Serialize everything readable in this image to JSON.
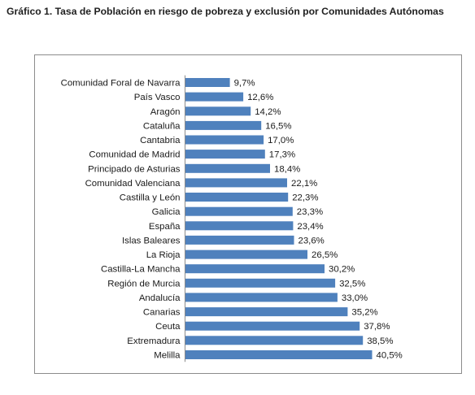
{
  "page": {
    "title": "Gráfico  1. Tasa de Población en riesgo de pobreza y exclusión por Comunidades Autónomas"
  },
  "chart_data": {
    "type": "bar",
    "orientation": "horizontal",
    "title": "",
    "xlabel": "",
    "ylabel": "",
    "xlim": [
      0,
      45
    ],
    "grid": false,
    "legend": "none",
    "bar_color": "#4f81bd",
    "categories": [
      "Comunidad Foral de Navarra",
      "País Vasco",
      "Aragón",
      "Cataluña",
      "Cantabria",
      "Comunidad de Madrid",
      "Principado de Asturias",
      "Comunidad Valenciana",
      "Castilla y León",
      "Galicia",
      "España",
      "Islas Baleares",
      "La Rioja",
      "Castilla-La Mancha",
      "Región de Murcia",
      "Andalucía",
      "Canarias",
      "Ceuta",
      "Extremadura",
      "Melilla"
    ],
    "values": [
      9.7,
      12.6,
      14.2,
      16.5,
      17.0,
      17.3,
      18.4,
      22.1,
      22.3,
      23.3,
      23.4,
      23.6,
      26.5,
      30.2,
      32.5,
      33.0,
      35.2,
      37.8,
      38.5,
      40.5
    ],
    "value_labels": [
      "9,7%",
      "12,6%",
      "14,2%",
      "16,5%",
      "17,0%",
      "17,3%",
      "18,4%",
      "22,1%",
      "22,3%",
      "23,3%",
      "23,4%",
      "23,6%",
      "26,5%",
      "30,2%",
      "32,5%",
      "33,0%",
      "35,2%",
      "37,8%",
      "38,5%",
      "40,5%"
    ]
  }
}
